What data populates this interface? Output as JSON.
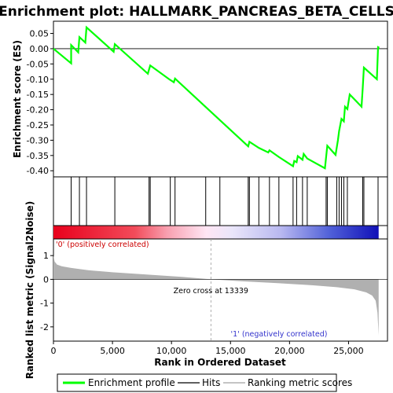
{
  "chart_data": [
    {
      "type": "line",
      "title": "Enrichment plot: HALLMARK_PANCREAS_BETA_CELLS",
      "xlabel": "",
      "ylabel": "Enrichment score (ES)",
      "xlim": [
        0,
        28300
      ],
      "ylim": [
        -0.42,
        0.09
      ],
      "yticks": [
        0.05,
        0.0,
        -0.05,
        -0.1,
        -0.15,
        -0.2,
        -0.25,
        -0.3,
        -0.35,
        -0.4
      ],
      "ytick_labels": [
        "0.05",
        "0.00",
        "-0.05",
        "-0.10",
        "-0.15",
        "-0.20",
        "-0.25",
        "-0.30",
        "-0.35",
        "-0.40"
      ],
      "series": [
        {
          "name": "Enrichment profile",
          "color": "#00ff00",
          "x": [
            0,
            1500,
            1500,
            2100,
            2200,
            2700,
            2800,
            5100,
            5200,
            8000,
            8100,
            8200,
            9800,
            10200,
            10300,
            16500,
            16600,
            17400,
            18200,
            18300,
            19100,
            20300,
            20400,
            20600,
            20700,
            21100,
            21200,
            21500,
            23000,
            23200,
            23900,
            24100,
            24200,
            24400,
            24600,
            24700,
            24900,
            25100,
            26100,
            26200,
            26300,
            27400,
            27500,
            27600
          ],
          "y": [
            0.0,
            -0.048,
            0.012,
            -0.012,
            0.038,
            0.02,
            0.07,
            -0.01,
            0.015,
            -0.082,
            -0.068,
            -0.055,
            -0.1,
            -0.11,
            -0.098,
            -0.32,
            -0.305,
            -0.325,
            -0.34,
            -0.333,
            -0.355,
            -0.385,
            -0.368,
            -0.372,
            -0.352,
            -0.364,
            -0.345,
            -0.36,
            -0.392,
            -0.318,
            -0.348,
            -0.3,
            -0.27,
            -0.23,
            -0.238,
            -0.19,
            -0.198,
            -0.15,
            -0.19,
            -0.13,
            -0.062,
            -0.1,
            0.005,
            0.003
          ]
        }
      ],
      "zero_line": 0.0,
      "grid": false
    },
    {
      "type": "scatter",
      "title": "",
      "series": [
        {
          "name": "Hits",
          "x": [
            1500,
            2200,
            2800,
            5200,
            8100,
            8200,
            9900,
            10300,
            12900,
            14100,
            16500,
            16600,
            17400,
            18300,
            19100,
            20300,
            20600,
            21100,
            21500,
            23100,
            23200,
            24000,
            24200,
            24400,
            24600,
            24900,
            26200,
            26300,
            27500
          ]
        }
      ],
      "xlim": [
        0,
        28300
      ]
    },
    {
      "type": "heatmap",
      "title": "",
      "note_gradient_from": "#ff0000",
      "note_gradient_to": "#0000ff",
      "xlim": [
        0,
        28300
      ]
    },
    {
      "type": "area",
      "title": "",
      "xlabel": "Rank in Ordered Dataset",
      "ylabel": "Ranked list metric (Signal2Noise)",
      "xlim": [
        0,
        28300
      ],
      "ylim": [
        -2.6,
        1.7
      ],
      "xticks": [
        0,
        5000,
        10000,
        15000,
        20000,
        25000
      ],
      "xtick_labels": [
        "0",
        "5,000",
        "10,000",
        "15,000",
        "20,000",
        "25,000"
      ],
      "yticks": [
        1,
        0,
        -1,
        -2
      ],
      "ytick_labels": [
        "1",
        "0",
        "-1",
        "-2"
      ],
      "series": [
        {
          "name": "Ranking metric scores",
          "color": "#b0b0b0",
          "x": [
            0,
            100,
            300,
            700,
            1500,
            3000,
            5000,
            8000,
            11000,
            13339,
            16000,
            19000,
            22000,
            24000,
            25500,
            26500,
            27000,
            27300,
            27450,
            27550
          ],
          "y": [
            1.0,
            0.75,
            0.62,
            0.55,
            0.48,
            0.38,
            0.3,
            0.2,
            0.1,
            0.0,
            -0.08,
            -0.16,
            -0.25,
            -0.33,
            -0.42,
            -0.55,
            -0.68,
            -0.9,
            -1.4,
            -2.35
          ]
        }
      ]
    }
  ],
  "annotations": {
    "zero_cross": "Zero cross at 13339",
    "zero_cross_value": 13339,
    "positive": "'0' (positively correlated)",
    "negative": "'1' (negatively correlated)",
    "positive_color": "#cc0000",
    "negative_color": "#3333cc"
  },
  "legend": {
    "placement": "bottom",
    "items": [
      {
        "label": "Enrichment profile",
        "color": "#00ff00"
      },
      {
        "label": "Hits",
        "color": "#000000"
      },
      {
        "label": "Ranking metric scores",
        "color": "#b0b0b0"
      }
    ]
  }
}
